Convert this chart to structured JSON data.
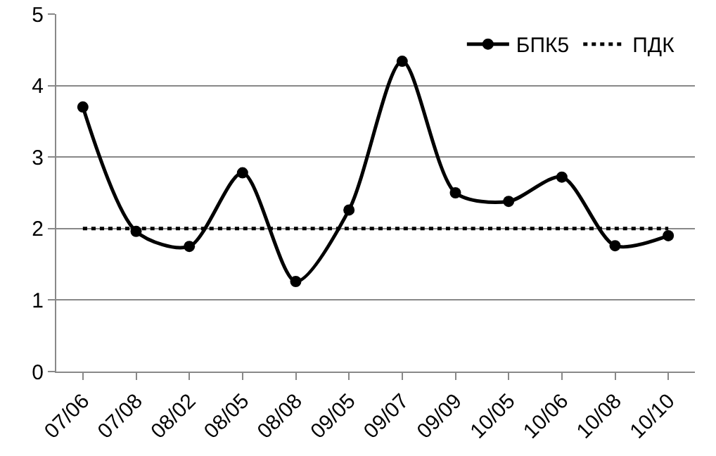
{
  "chart_data": {
    "type": "line",
    "categories": [
      "07/06",
      "07/08",
      "08/02",
      "08/05",
      "08/08",
      "09/05",
      "09/07",
      "09/09",
      "10/05",
      "10/06",
      "10/08",
      "10/10"
    ],
    "series": [
      {
        "name": "БПК5",
        "color": "#000000",
        "marker": "circle",
        "line_style": "solid",
        "values": [
          3.7,
          1.96,
          1.75,
          2.78,
          1.26,
          2.26,
          4.34,
          2.5,
          2.38,
          2.72,
          1.76,
          1.9
        ]
      },
      {
        "name": "ПДК",
        "color": "#000000",
        "marker": "none",
        "line_style": "dotted",
        "values": [
          2,
          2,
          2,
          2,
          2,
          2,
          2,
          2,
          2,
          2,
          2,
          2
        ]
      }
    ],
    "ylim": [
      0,
      5
    ],
    "yticks": [
      0,
      1,
      2,
      3,
      4,
      5
    ],
    "grid": "y",
    "legend": "top right"
  }
}
